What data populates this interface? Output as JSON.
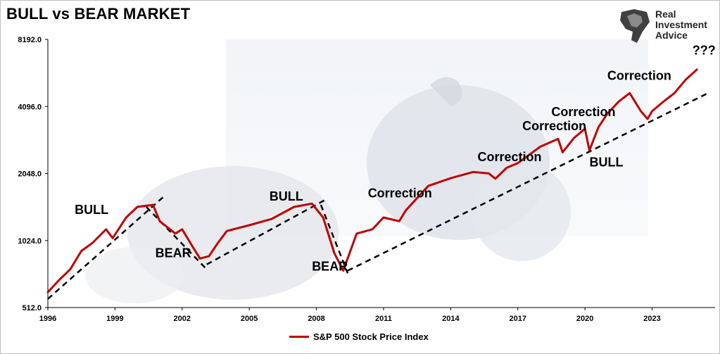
{
  "page_title": "BULL vs BEAR MARKET",
  "logo": {
    "line1": "Real",
    "line2": "Investment",
    "line3": "Advice"
  },
  "chart_data": {
    "type": "line",
    "title": "BULL vs BEAR MARKET",
    "y_scale": "log2",
    "ylim": [
      512,
      8192
    ],
    "xlim": [
      1996,
      2025.5
    ],
    "y_ticks": [
      "8192.0",
      "4096.0",
      "2048.0",
      "1024.0",
      "512.0"
    ],
    "y_tick_values": [
      8192,
      4096,
      2048,
      1024,
      512
    ],
    "x_ticks": [
      "1996",
      "1999",
      "2002",
      "2005",
      "2008",
      "2011",
      "2014",
      "2017",
      "2020",
      "2023"
    ],
    "x_tick_values": [
      1996,
      1999,
      2002,
      2005,
      2008,
      2011,
      2014,
      2017,
      2020,
      2023
    ],
    "grid": false,
    "legend_position": "bottom-center",
    "series": [
      {
        "name": "S&P 500 Stock Price Index",
        "color": "#c00000",
        "x": [
          1996.0,
          1996.5,
          1997.0,
          1997.5,
          1998.0,
          1998.6,
          1998.9,
          1999.5,
          2000.0,
          2000.7,
          2001.0,
          2001.7,
          2002.0,
          2002.5,
          2002.8,
          2003.2,
          2003.6,
          2004.0,
          2005.0,
          2006.0,
          2007.0,
          2007.8,
          2008.3,
          2008.8,
          2009.2,
          2009.8,
          2010.5,
          2011.0,
          2011.7,
          2012.0,
          2013.0,
          2014.0,
          2015.0,
          2015.7,
          2016.0,
          2016.5,
          2017.0,
          2018.0,
          2018.8,
          2019.0,
          2019.5,
          2020.0,
          2020.2,
          2020.6,
          2021.0,
          2021.5,
          2022.0,
          2022.5,
          2022.8,
          2023.0,
          2023.5,
          2024.0,
          2024.5,
          2025.0
        ],
        "y": [
          600,
          680,
          760,
          920,
          1000,
          1150,
          1050,
          1300,
          1450,
          1480,
          1250,
          1100,
          1150,
          950,
          850,
          870,
          1000,
          1130,
          1200,
          1280,
          1450,
          1500,
          1300,
          900,
          750,
          1100,
          1150,
          1300,
          1250,
          1400,
          1800,
          1950,
          2080,
          2050,
          1940,
          2170,
          2280,
          2700,
          2930,
          2550,
          2950,
          3250,
          2600,
          3300,
          3800,
          4300,
          4700,
          3900,
          3600,
          3900,
          4300,
          4700,
          5400,
          6000
        ]
      }
    ],
    "annotations": [
      {
        "text": "BULL",
        "x": 1997.2,
        "y": 1350
      },
      {
        "text": "BEAR",
        "x": 2000.8,
        "y": 860
      },
      {
        "text": "BULL",
        "x": 2005.9,
        "y": 1550
      },
      {
        "text": "BEAR",
        "x": 2007.8,
        "y": 750
      },
      {
        "text": "Correction",
        "x": 2010.3,
        "y": 1600
      },
      {
        "text": "Correction",
        "x": 2015.2,
        "y": 2330
      },
      {
        "text": "Correction",
        "x": 2017.2,
        "y": 3200
      },
      {
        "text": "Correction",
        "x": 2018.5,
        "y": 3700
      },
      {
        "text": "Correction",
        "x": 2021.0,
        "y": 5400
      },
      {
        "text": "BULL",
        "x": 2020.2,
        "y": 2200
      },
      {
        "text": "???",
        "x": 2024.8,
        "y": 7000
      }
    ],
    "trendlines": [
      [
        [
          1996.0,
          560
        ],
        [
          2001.2,
          1620
        ]
      ],
      [
        [
          2000.4,
          1450
        ],
        [
          2003.1,
          760
        ]
      ],
      [
        [
          2003.1,
          800
        ],
        [
          2008.5,
          1580
        ]
      ],
      [
        [
          2008.2,
          1480
        ],
        [
          2009.4,
          730
        ]
      ],
      [
        [
          2009.4,
          750
        ],
        [
          2025.5,
          4700
        ]
      ]
    ]
  }
}
